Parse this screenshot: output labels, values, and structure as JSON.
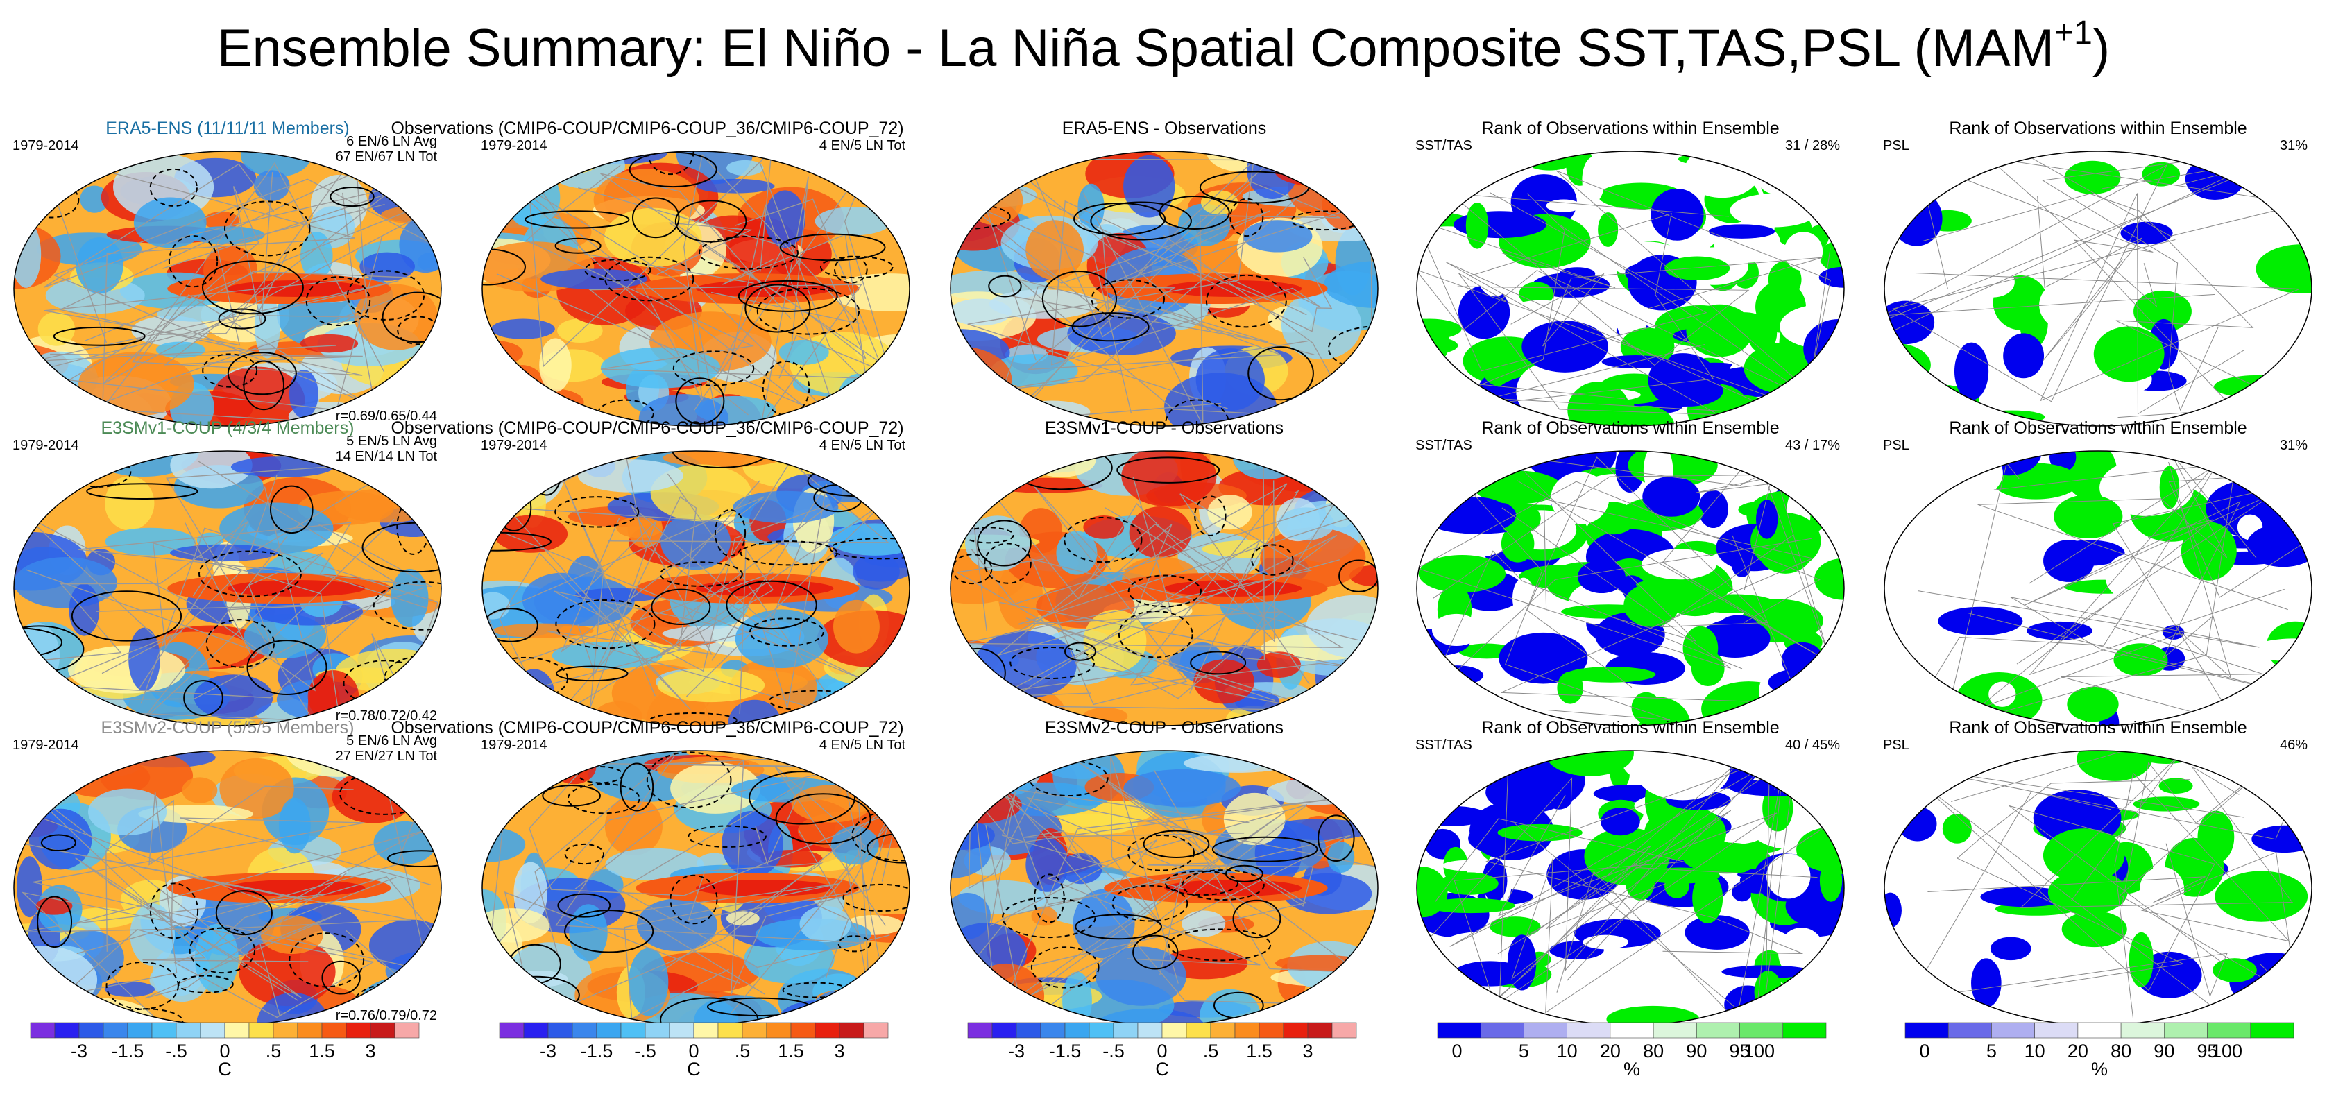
{
  "figure": {
    "title_main": "Ensemble Summary: El Niño - La Niña Spatial Composite SST,TAS,PSL (MAM",
    "title_sup": "+1",
    "title_close": ")"
  },
  "colors": {
    "ens_row1": "#1a6fa3",
    "ens_row2": "#4b8a55",
    "ens_row3": "#8c8c8c",
    "rank_low": "#0000ee",
    "rank_high": "#00ee00",
    "ocean_warm": "#fdb035",
    "ocean_cool": "#58b8ee"
  },
  "rows": [
    {
      "ensemble_title": "ERA5-ENS (11/11/11 Members)",
      "ensemble_period": "1979-2014",
      "ensemble_counts": [
        "6 EN/6 LN Avg",
        "67 EN/67 LN Tot"
      ],
      "ensemble_corr": "r=0.69/0.65/0.44",
      "obs_title": "Observations (CMIP6-COUP/CMIP6-COUP_36/CMIP6-COUP_72)",
      "obs_period": "1979-2014",
      "obs_counts": "4 EN/5 LN Tot",
      "diff_title": "ERA5-ENS - Observations",
      "rank_sst_title": "Rank of Observations within Ensemble",
      "rank_sst_var": "SST/TAS",
      "rank_sst_pct": "31 /  28%",
      "rank_psl_title": "Rank of Observations within Ensemble",
      "rank_psl_var": "PSL",
      "rank_psl_pct": "31%"
    },
    {
      "ensemble_title": "E3SMv1-COUP (4/3/4 Members)",
      "ensemble_period": "1979-2014",
      "ensemble_counts": [
        "5 EN/5 LN Avg",
        "14 EN/14 LN Tot"
      ],
      "ensemble_corr": "r=0.78/0.72/0.42",
      "obs_title": "Observations (CMIP6-COUP/CMIP6-COUP_36/CMIP6-COUP_72)",
      "obs_period": "1979-2014",
      "obs_counts": "4 EN/5 LN Tot",
      "diff_title": "E3SMv1-COUP - Observations",
      "rank_sst_title": "Rank of Observations within Ensemble",
      "rank_sst_var": "SST/TAS",
      "rank_sst_pct": "43 /  17%",
      "rank_psl_title": "Rank of Observations within Ensemble",
      "rank_psl_var": "PSL",
      "rank_psl_pct": "31%"
    },
    {
      "ensemble_title": "E3SMv2-COUP (5/5/5 Members)",
      "ensemble_period": "1979-2014",
      "ensemble_counts": [
        "5 EN/6 LN Avg",
        "27 EN/27 LN Tot"
      ],
      "ensemble_corr": "r=0.76/0.79/0.72",
      "obs_title": "Observations (CMIP6-COUP/CMIP6-COUP_36/CMIP6-COUP_72)",
      "obs_period": "1979-2014",
      "obs_counts": "4 EN/5 LN Tot",
      "diff_title": "E3SMv2-COUP - Observations",
      "rank_sst_title": "Rank of Observations within Ensemble",
      "rank_sst_var": "SST/TAS",
      "rank_sst_pct": "40 /  45%",
      "rank_psl_title": "Rank of Observations within Ensemble",
      "rank_psl_var": "PSL",
      "rank_psl_pct": "46%"
    }
  ],
  "chart_data": {
    "type": "heatmap",
    "title": "Ensemble Summary: El Niño - La Niña Spatial Composite SST,TAS,PSL (MAM+1)",
    "panels_per_row": [
      "ensemble mean composite",
      "observations composite",
      "ensemble - observations",
      "rank SST/TAS",
      "rank PSL"
    ],
    "colorbars": {
      "temperature": {
        "unit": "C",
        "tick_labels": [
          "-3",
          "-1.5",
          "-.5",
          "0",
          ".5",
          "1.5",
          "3"
        ],
        "levels": [
          -4,
          -3,
          -2,
          -1.5,
          -1,
          -0.5,
          -0.25,
          0,
          0.25,
          0.5,
          1,
          1.5,
          2,
          3,
          4
        ],
        "colors": [
          "#7b2fe0",
          "#2a20f0",
          "#2d5ae8",
          "#3a86ec",
          "#3ba6f0",
          "#4fc0f5",
          "#8fd3f5",
          "#bde3f5",
          "#fff7a8",
          "#fde04a",
          "#fdb035",
          "#fb8c1e",
          "#f65a14",
          "#e8200e",
          "#c81a1a",
          "#f7a8a8"
        ]
      },
      "rank": {
        "unit": "%",
        "tick_labels": [
          "0",
          "5",
          "10",
          "20",
          "80",
          "90",
          "95",
          "100"
        ],
        "levels": [
          0,
          5,
          10,
          20,
          80,
          90,
          95,
          100
        ],
        "colors": [
          "#0000ee",
          "#6a6ae8",
          "#aeaef0",
          "#dcdcf6",
          "#ffffff",
          "#dcf6dc",
          "#aef0ae",
          "#6ae86a",
          "#00ee00"
        ]
      }
    }
  }
}
